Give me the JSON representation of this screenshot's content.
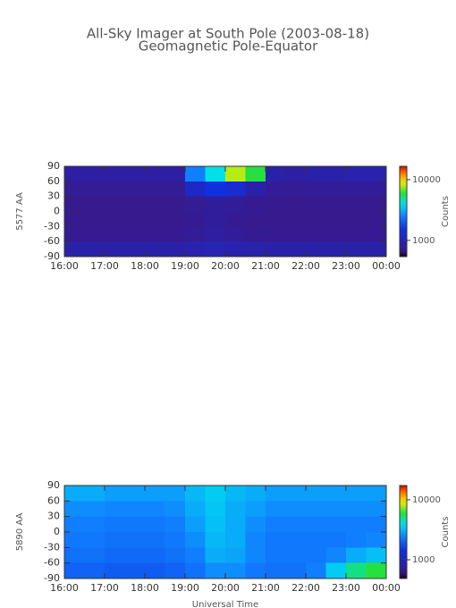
{
  "chart_data": {
    "type": "heatmap",
    "title": "All-Sky Imager at South Pole (2003-08-18)",
    "subtitle": "Geomagnetic Pole-Equator",
    "xlabel": "Universal Time",
    "xlim": [
      16,
      24
    ],
    "xticks": [
      {
        "value": 16,
        "label": "16:00"
      },
      {
        "value": 17,
        "label": "17:00"
      },
      {
        "value": 18,
        "label": "18:00"
      },
      {
        "value": 19,
        "label": "19:00"
      },
      {
        "value": 20,
        "label": "20:00"
      },
      {
        "value": 21,
        "label": "21:00"
      },
      {
        "value": 22,
        "label": "22:00"
      },
      {
        "value": 23,
        "label": "23:00"
      },
      {
        "value": 24,
        "label": "00:00"
      }
    ],
    "xbins": [
      16,
      16.5,
      17,
      17.5,
      18,
      18.5,
      19,
      19.5,
      20,
      20.5,
      21,
      21.5,
      22,
      22.5,
      23,
      23.5,
      24
    ],
    "panels": [
      {
        "ylabel": "5577 AA",
        "ylim": [
          -90,
          90
        ],
        "yticks": [
          90,
          60,
          30,
          0,
          -30,
          -60,
          -90
        ],
        "ybins": [
          90,
          60,
          30,
          0,
          -30,
          -60,
          -90
        ],
        "zlabel": "Counts",
        "zlim": [
          540,
          16600
        ],
        "zticks": [
          10000,
          1000
        ],
        "values": [
          [
            850,
            850,
            850,
            850,
            850,
            850,
            2500,
            4000,
            8000,
            6000,
            900,
            850,
            900,
            900,
            950,
            950
          ],
          [
            750,
            750,
            750,
            750,
            750,
            750,
            1200,
            1500,
            1300,
            900,
            760,
            750,
            760,
            760,
            760,
            760
          ],
          [
            700,
            700,
            700,
            700,
            700,
            700,
            750,
            800,
            760,
            720,
            700,
            700,
            700,
            700,
            700,
            700
          ],
          [
            700,
            700,
            700,
            700,
            700,
            700,
            740,
            800,
            740,
            710,
            700,
            700,
            700,
            700,
            700,
            700
          ],
          [
            720,
            720,
            720,
            720,
            720,
            720,
            760,
            820,
            760,
            730,
            720,
            720,
            720,
            720,
            720,
            720
          ],
          [
            900,
            900,
            900,
            900,
            900,
            900,
            950,
            1000,
            950,
            920,
            900,
            900,
            900,
            900,
            900,
            900
          ]
        ]
      },
      {
        "ylabel": "5890 AA",
        "ylim": [
          -90,
          90
        ],
        "yticks": [
          90,
          60,
          30,
          0,
          -30,
          -60,
          -90
        ],
        "ybins": [
          90,
          60,
          30,
          0,
          -30,
          -60,
          -90
        ],
        "zlabel": "Counts",
        "zlim": [
          486,
          17300
        ],
        "zticks": [
          10000,
          1000
        ],
        "values": [
          [
            3000,
            3000,
            2800,
            2800,
            2800,
            2800,
            3200,
            3500,
            3200,
            3000,
            2800,
            2800,
            2800,
            2800,
            2800,
            2800
          ],
          [
            2600,
            2600,
            2500,
            2500,
            2500,
            2600,
            3000,
            3400,
            3000,
            2800,
            2600,
            2600,
            2600,
            2600,
            2600,
            2600
          ],
          [
            2400,
            2400,
            2300,
            2300,
            2300,
            2400,
            2800,
            3300,
            3000,
            2600,
            2400,
            2400,
            2400,
            2400,
            2400,
            2400
          ],
          [
            2300,
            2300,
            2200,
            2200,
            2200,
            2300,
            2600,
            3200,
            3000,
            2500,
            2300,
            2300,
            2300,
            2300,
            2400,
            2500
          ],
          [
            2200,
            2200,
            2100,
            2100,
            2100,
            2200,
            2400,
            3000,
            2900,
            2500,
            2300,
            2300,
            2300,
            2500,
            3000,
            3300
          ],
          [
            2000,
            2000,
            1900,
            1900,
            1900,
            2000,
            2200,
            2600,
            2600,
            2300,
            2200,
            2200,
            2400,
            3500,
            5000,
            6000
          ]
        ]
      }
    ]
  }
}
